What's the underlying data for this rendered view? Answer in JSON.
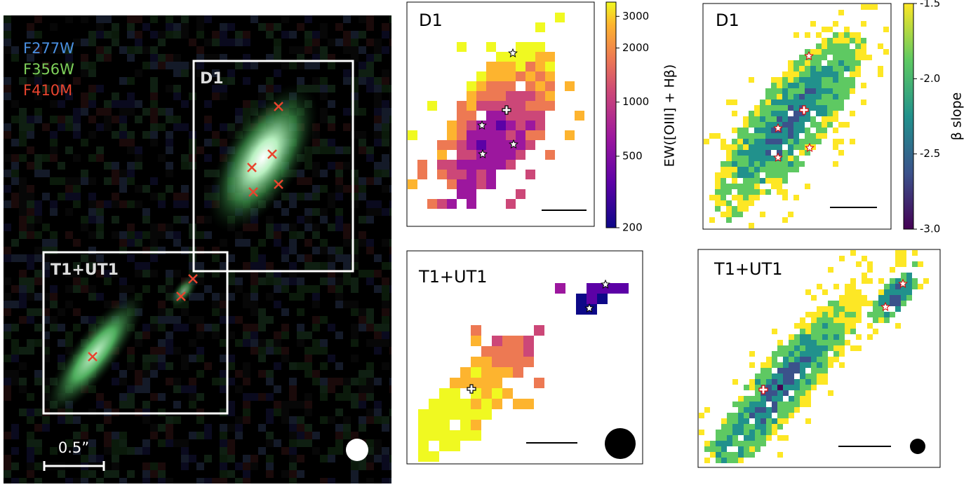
{
  "left_panel": {
    "filters": [
      "F277W",
      "F356W",
      "F410M"
    ],
    "box_labels": [
      "D1",
      "T1+UT1"
    ],
    "scale_label": "0.5”"
  },
  "panels": [
    {
      "label": "D1"
    },
    {
      "label": "D1"
    },
    {
      "label": "T1+UT1"
    },
    {
      "label": "T1+UT1"
    }
  ],
  "colorbars": [
    {
      "label": "EW([OIII] + Hβ)",
      "scale": "log",
      "lim": [
        200,
        3600
      ],
      "ticks": [
        3000,
        2000,
        1000,
        500,
        200
      ]
    },
    {
      "label": "β slope",
      "scale": "linear",
      "lim": [
        -3.0,
        -1.5
      ],
      "ticks": [
        -1.5,
        {
          "value": -2.0,
          "label": "-2.0"
        },
        -2.5,
        {
          "value": -3.0,
          "label": "-3.0"
        }
      ]
    }
  ]
}
